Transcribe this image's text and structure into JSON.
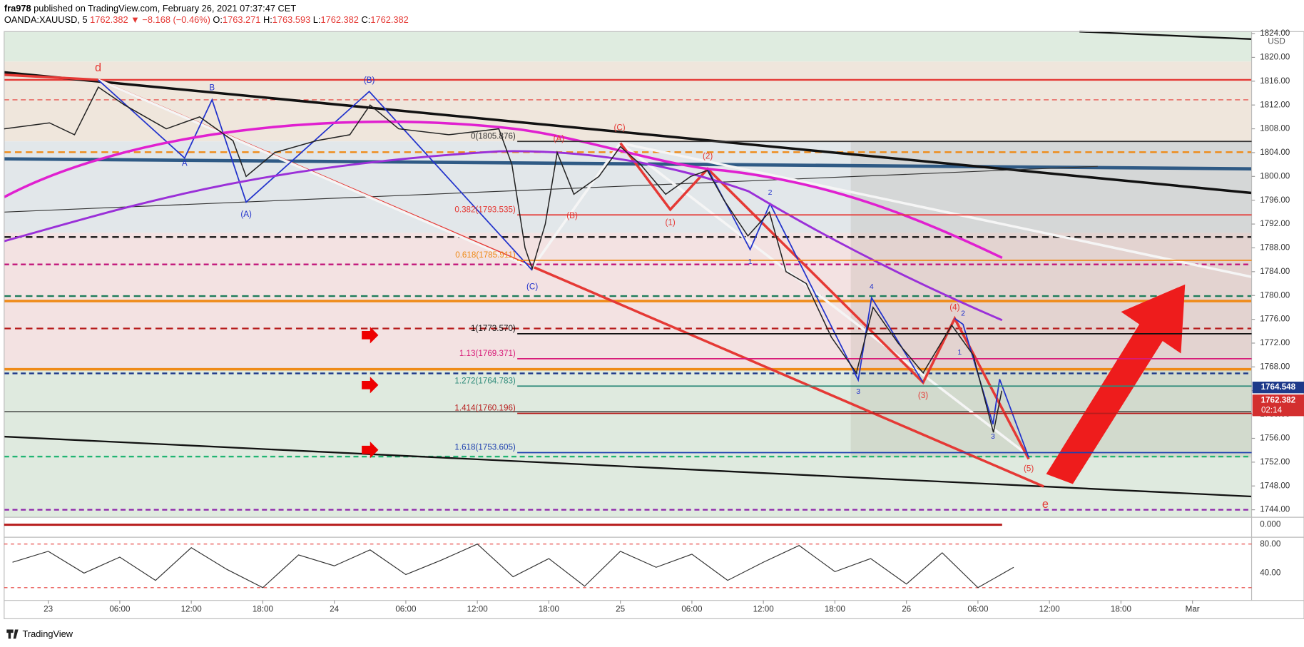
{
  "header": {
    "author": "fra978",
    "published": "published on TradingView.com, February 26, 2021 07:37:47 CET",
    "symbol": "OANDA:XAUUSD, 5",
    "last": "1762.382 ▼ −8.168 (−0.46%)",
    "o_key": "O:",
    "o": "1763.271",
    "h_key": "H:",
    "h": "1763.593",
    "l_key": "L:",
    "l": "1762.382",
    "c_key": "C:",
    "c": "1762.382"
  },
  "chart_data": {
    "type": "line",
    "currency": "USD",
    "color": "#222222",
    "x": [
      -3.7,
      0.1,
      2.2,
      4.2,
      6.4,
      9.9,
      12.7,
      15.5,
      16.6,
      19,
      22.5,
      25.3,
      27,
      29.4,
      33.6,
      37.8,
      38.9,
      40,
      40.6,
      41.7,
      42.7,
      44.1,
      46.2,
      48,
      49.7,
      51.8,
      53.9,
      55.3,
      56.7,
      58.7,
      60.5,
      61.9,
      63.6,
      65.7,
      67.8,
      69.2,
      71.3,
      73.4,
      75.8,
      77.6,
      79.3,
      80
    ],
    "values": [
      1808,
      1809,
      1807,
      1815,
      1812,
      1808,
      1810,
      1806,
      1800,
      1804,
      1806,
      1807,
      1812,
      1808,
      1807,
      1808,
      1802,
      1788,
      1784.5,
      1792,
      1804,
      1797,
      1800,
      1805,
      1802,
      1797,
      1800,
      1801,
      1796,
      1790,
      1794,
      1784,
      1782,
      1773,
      1767,
      1778,
      1772,
      1767,
      1775,
      1770,
      1757,
      1764
    ],
    "xlim": [
      -3.7,
      100.96
    ],
    "ylim": [
      1742.74,
      1824.33
    ],
    "xticks": [
      {
        "value": 0,
        "label": "23"
      },
      {
        "value": 6,
        "label": "06:00"
      },
      {
        "value": 12,
        "label": "12:00"
      },
      {
        "value": 18,
        "label": "18:00"
      },
      {
        "value": 24,
        "label": "24"
      },
      {
        "value": 30,
        "label": "06:00"
      },
      {
        "value": 36,
        "label": "12:00"
      },
      {
        "value": 42,
        "label": "18:00"
      },
      {
        "value": 48,
        "label": "25"
      },
      {
        "value": 54,
        "label": "06:00"
      },
      {
        "value": 60,
        "label": "12:00"
      },
      {
        "value": 66,
        "label": "18:00"
      },
      {
        "value": 72,
        "label": "26"
      },
      {
        "value": 78,
        "label": "06:00"
      },
      {
        "value": 84,
        "label": "12:00"
      },
      {
        "value": 90,
        "label": "18:00"
      },
      {
        "value": 96,
        "label": "Mar"
      }
    ],
    "yticks": [
      {
        "value": 1824,
        "label": "1824.00"
      },
      {
        "value": 1820,
        "label": "1820.00"
      },
      {
        "value": 1816,
        "label": "1816.00"
      },
      {
        "value": 1812,
        "label": "1812.00"
      },
      {
        "value": 1808,
        "label": "1808.00"
      },
      {
        "value": 1804,
        "label": "1804.00"
      },
      {
        "value": 1800,
        "label": "1800.00"
      },
      {
        "value": 1796,
        "label": "1796.00"
      },
      {
        "value": 1792,
        "label": "1792.00"
      },
      {
        "value": 1788,
        "label": "1788.00"
      },
      {
        "value": 1784,
        "label": "1784.00"
      },
      {
        "value": 1780,
        "label": "1780.00"
      },
      {
        "value": 1776,
        "label": "1776.00"
      },
      {
        "value": 1772,
        "label": "1772.00"
      },
      {
        "value": 1768,
        "label": "1768.00"
      },
      {
        "value": 1764,
        "label": "1764.00"
      },
      {
        "value": 1760,
        "label": "1760.00"
      },
      {
        "value": 1756,
        "label": "1756.00"
      },
      {
        "value": 1752,
        "label": "1752.00"
      },
      {
        "value": 1748,
        "label": "1748.00"
      },
      {
        "value": 1744,
        "label": "1744.00"
      }
    ],
    "fib_levels": [
      {
        "label": "0(1805.876)",
        "value": 1805.876,
        "color": "#333333"
      },
      {
        "label": "0.382(1793.535)",
        "value": 1793.535,
        "color": "#e53935"
      },
      {
        "label": "0.618(1785.911)",
        "value": 1785.911,
        "color": "#ef8a17"
      },
      {
        "label": "1(1773.570)",
        "value": 1773.57,
        "color": "#111111"
      },
      {
        "label": "1.13(1769.371)",
        "value": 1769.371,
        "color": "#d81b78"
      },
      {
        "label": "1.272(1764.783)",
        "value": 1764.783,
        "color": "#2e8b7a"
      },
      {
        "label": "1.414(1760.196)",
        "value": 1760.196,
        "color": "#b71c1c"
      },
      {
        "label": "1.618(1753.605)",
        "value": 1753.605,
        "color": "#1e40af"
      }
    ],
    "price_tags": [
      {
        "label": "1764.548",
        "value": 1764.548,
        "color": "#1e3a8a"
      },
      {
        "label": "1762.382",
        "value": 1762.382,
        "color": "#d32f2f",
        "countdown": "02:14"
      }
    ],
    "annotations": [
      {
        "text": "d",
        "color": "#e53935"
      },
      {
        "text": "B",
        "color": "#2233cc"
      },
      {
        "text": "A",
        "color": "#2233cc"
      },
      {
        "text": "(A)",
        "color": "#2233cc"
      },
      {
        "text": "(B)",
        "color": "#2233cc"
      },
      {
        "text": "(C)",
        "color": "#2233cc"
      },
      {
        "text": "(A)",
        "color": "#e53935"
      },
      {
        "text": "(B)",
        "color": "#e53935"
      },
      {
        "text": "(C)",
        "color": "#e53935"
      },
      {
        "text": "(1)",
        "color": "#e53935"
      },
      {
        "text": "(2)",
        "color": "#e53935"
      },
      {
        "text": "(4)",
        "color": "#e53935"
      },
      {
        "text": "(3)",
        "color": "#e53935"
      },
      {
        "text": "(5)",
        "color": "#e53935"
      },
      {
        "text": "e",
        "color": "#e53935"
      },
      {
        "text": "2",
        "color": "#2233cc"
      },
      {
        "text": "1",
        "color": "#2233cc"
      },
      {
        "text": "4",
        "color": "#2233cc"
      },
      {
        "text": "3",
        "color": "#2233cc"
      },
      {
        "text": "2",
        "color": "#2233cc"
      },
      {
        "text": "1",
        "color": "#2233cc"
      },
      {
        "text": "3",
        "color": "#2233cc"
      }
    ]
  },
  "oscillator": {
    "zero_tick": {
      "value": 0,
      "label": "0.000"
    },
    "x": [
      -3,
      0,
      3,
      6,
      9,
      12,
      15,
      18,
      21,
      24,
      27,
      30,
      33,
      36,
      39,
      42,
      45,
      48,
      51,
      54,
      57,
      60,
      63,
      66,
      69,
      72,
      75,
      78,
      81
    ],
    "values": [
      55,
      70,
      40,
      62,
      30,
      75,
      45,
      20,
      65,
      50,
      72,
      38,
      58,
      80,
      35,
      60,
      22,
      70,
      48,
      66,
      30,
      55,
      78,
      42,
      60,
      25,
      68,
      20,
      48
    ],
    "ylim": [
      2.4,
      89.4
    ],
    "yticks": [
      {
        "value": 80,
        "label": "80.00"
      },
      {
        "value": 40,
        "label": "40.00"
      }
    ],
    "levels": [
      80,
      20
    ]
  },
  "footer": {
    "brand": "TradingView"
  }
}
